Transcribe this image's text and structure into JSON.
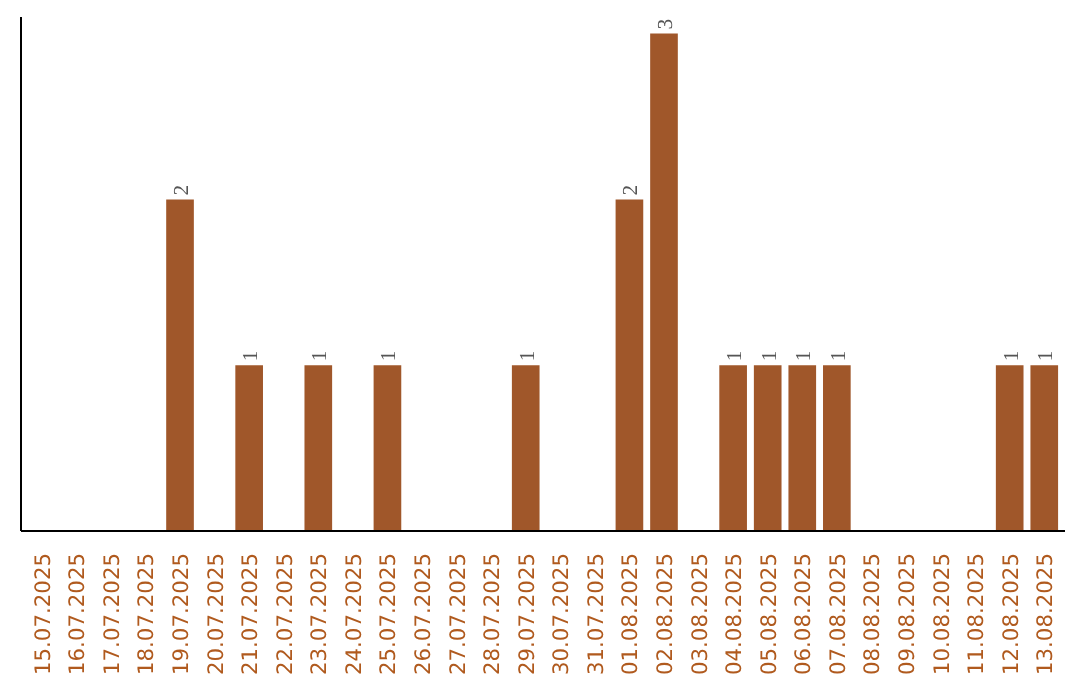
{
  "chart_data": {
    "type": "bar",
    "categories": [
      "15.07.2025",
      "16.07.2025",
      "17.07.2025",
      "18.07.2025",
      "19.07.2025",
      "20.07.2025",
      "21.07.2025",
      "22.07.2025",
      "23.07.2025",
      "24.07.2025",
      "25.07.2025",
      "26.07.2025",
      "27.07.2025",
      "28.07.2025",
      "29.07.2025",
      "30.07.2025",
      "31.07.2025",
      "01.08.2025",
      "02.08.2025",
      "03.08.2025",
      "04.08.2025",
      "05.08.2025",
      "06.08.2025",
      "07.08.2025",
      "08.08.2025",
      "09.08.2025",
      "10.08.2025",
      "11.08.2025",
      "12.08.2025",
      "13.08.2025"
    ],
    "values": [
      0,
      0,
      0,
      0,
      2,
      0,
      1,
      0,
      1,
      0,
      1,
      0,
      0,
      0,
      1,
      0,
      0,
      2,
      3,
      0,
      1,
      1,
      1,
      1,
      0,
      0,
      0,
      0,
      1,
      1
    ],
    "value_labels": [
      null,
      null,
      null,
      null,
      "2",
      null,
      "1",
      null,
      "1",
      null,
      "1",
      null,
      null,
      null,
      "1",
      null,
      null,
      "2",
      "3",
      null,
      "1",
      "1",
      "1",
      "1",
      null,
      null,
      null,
      null,
      "1",
      "1"
    ],
    "color": "#a0572a",
    "ylim": [
      0,
      3.1
    ],
    "tick_labels": "x",
    "grid": false
  }
}
